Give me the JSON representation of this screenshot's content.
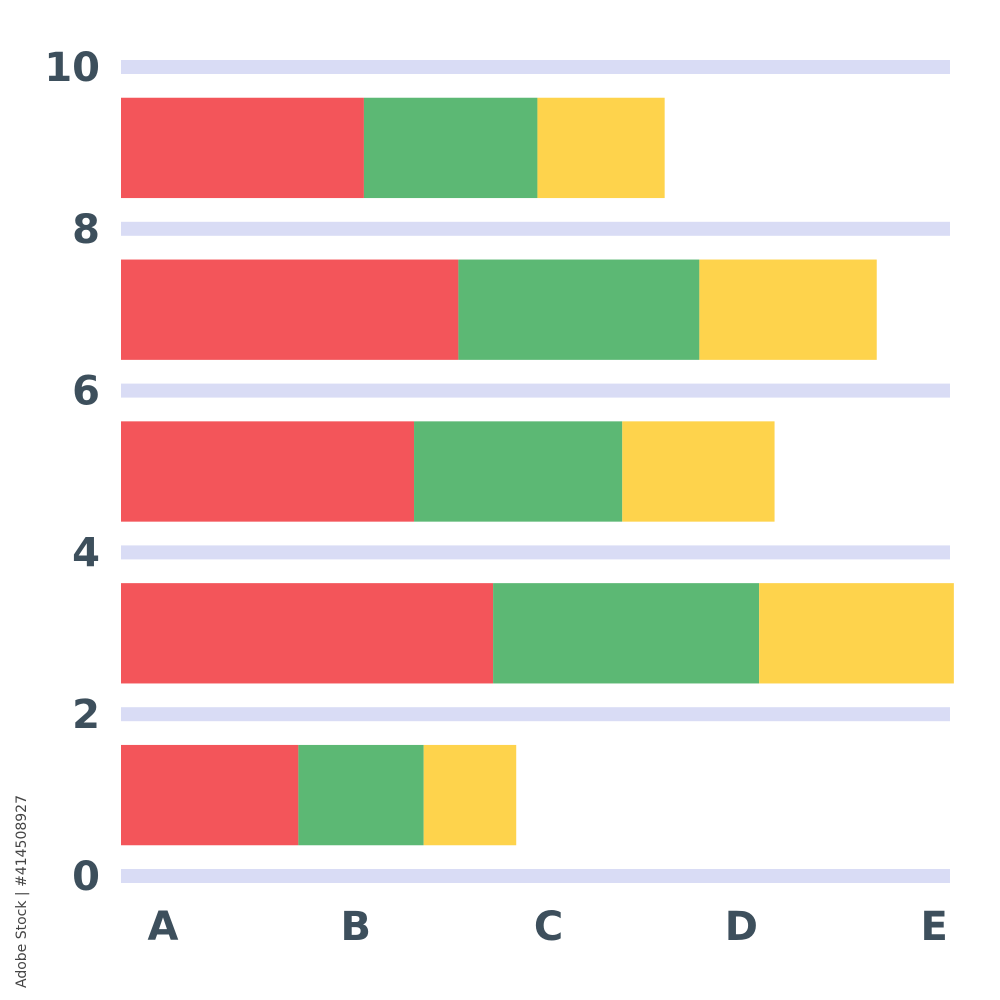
{
  "watermark": {
    "vertical_text": "Adobe Stock | #414508927"
  },
  "colors": {
    "gridline": "#d9dcf5",
    "tick_text": "#3d4f5c",
    "series": [
      "#f3555a",
      "#5cb874",
      "#fed34c"
    ]
  },
  "chart_data": {
    "type": "bar",
    "orientation": "horizontal",
    "stacked": true,
    "title": "",
    "xlabel": "",
    "ylabel": "",
    "x_ticks": [
      "A",
      "B",
      "C",
      "D",
      "E"
    ],
    "xlim": [
      0,
      4.3
    ],
    "y_ticks": [
      "0",
      "2",
      "4",
      "6",
      "8",
      "10"
    ],
    "ylim": [
      0,
      10
    ],
    "grid": true,
    "legend": "none",
    "categories": [
      1,
      3,
      5,
      7,
      9
    ],
    "series": [
      {
        "color": "#f3555a",
        "values": [
          0.92,
          1.93,
          1.52,
          1.75,
          1.26
        ]
      },
      {
        "color": "#5cb874",
        "values": [
          0.65,
          1.38,
          1.08,
          1.25,
          0.9
        ]
      },
      {
        "color": "#fed34c",
        "values": [
          0.48,
          1.01,
          0.79,
          0.92,
          0.66
        ]
      }
    ]
  }
}
